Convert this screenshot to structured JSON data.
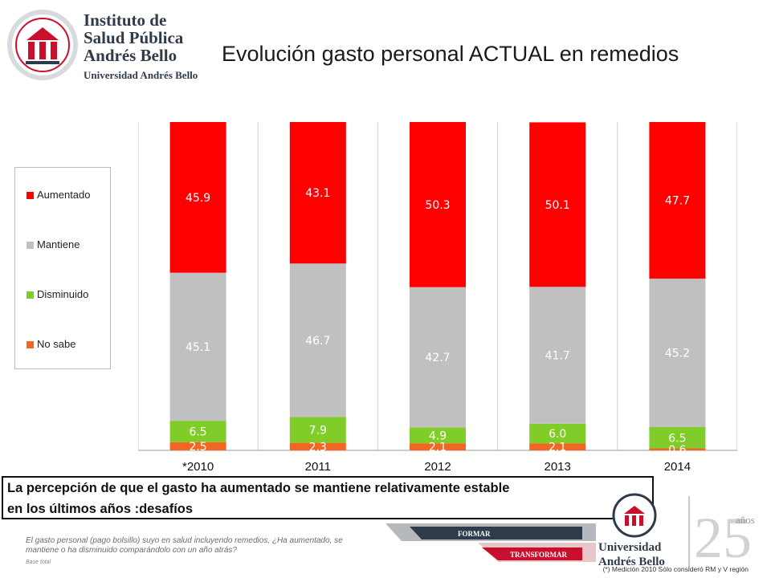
{
  "header": {
    "org_line1": "Instituto de",
    "org_line2": "Salud Pública",
    "org_line3": "Andrés Bello",
    "org_sub": "Universidad Andrés Bello",
    "title": "Evolución gasto personal ACTUAL en remedios"
  },
  "chart_data": {
    "type": "bar",
    "stacked": true,
    "categories": [
      "*2010",
      "2011",
      "2012",
      "2013",
      "2014"
    ],
    "series": [
      {
        "name": "No sabe",
        "color": "#f26522",
        "values": [
          2.5,
          2.3,
          2.1,
          2.1,
          0.6
        ]
      },
      {
        "name": "Disminuido",
        "color": "#80cc28",
        "values": [
          6.5,
          7.9,
          4.9,
          6.0,
          6.5
        ]
      },
      {
        "name": "Mantiene",
        "color": "#c0c0c0",
        "values": [
          45.1,
          46.7,
          42.7,
          41.7,
          45.2
        ]
      },
      {
        "name": "Aumentado",
        "color": "#ff0000",
        "values": [
          45.9,
          43.1,
          50.3,
          50.1,
          47.7
        ]
      }
    ],
    "legend_order": [
      "Aumentado",
      "Mantiene",
      "Disminuido",
      "No sabe"
    ],
    "legend_position": "left",
    "grid": "vertical-lines"
  },
  "callout": {
    "line1": "La percepción de que el gasto ha aumentado se mantiene relativamente estable",
    "line2": "en los últimos años :desafíos"
  },
  "note": {
    "text": "El gasto personal (pago bolsillo) suyo en salud incluyendo remedios, ¿Ha aumentado, se mantiene o ha disminuido comparándolo con un año atrás?",
    "base": "Base total"
  },
  "footer": {
    "formar": "FORMAR",
    "transformar": "TRANSFORMAR",
    "uab_line1": "Universidad",
    "uab_line2": "Andrés Bello",
    "anos": "años",
    "footnote": "(*) Medición 2010 Sólo consideró RM y V región"
  },
  "colors": {
    "brand_red": "#c8102e",
    "brand_navy": "#2f3a4a"
  }
}
